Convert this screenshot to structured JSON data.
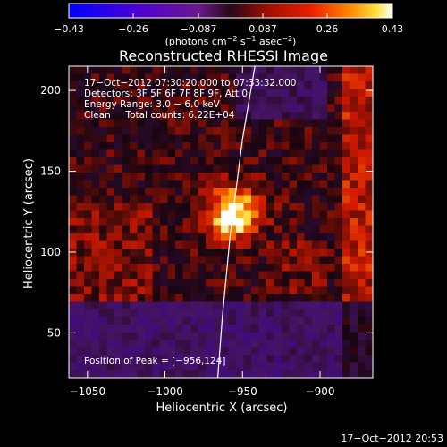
{
  "chart_data": {
    "type": "heatmap",
    "title": "Reconstructed RHESSI Image",
    "xlabel": "Heliocentric X (arcsec)",
    "ylabel": "Heliocentric Y (arcsec)",
    "xlim": [
      -1062,
      -866
    ],
    "ylim": [
      22,
      215
    ],
    "x_ticks": [
      -1050,
      -1000,
      -950,
      -900
    ],
    "x_tick_labels": [
      "−1050",
      "−1000",
      "−950",
      "−900"
    ],
    "y_ticks": [
      50,
      100,
      150,
      200
    ],
    "y_tick_labels": [
      "50",
      "100",
      "150",
      "200"
    ],
    "colorbar": {
      "range": [
        -0.43,
        0.43
      ],
      "tick_labels": [
        "−0.43",
        "−0.26",
        "−0.087",
        "0.087",
        "0.26",
        "0.43"
      ],
      "label_main": "(photons cm",
      "label_sup1": "−2",
      "label_mid": " s",
      "label_sup2": "−1",
      "label_mid2": " asec",
      "label_sup3": "−2",
      "label_end": ")"
    },
    "info_lines": [
      "17−Oct−2012 07:30:20.000 to 07:33:32.000",
      "Detectors: 3F 5F 6F 7F 8F 9F, Att 0",
      "Energy Range: 3.0 − 6.0 keV",
      "Clean     Total counts: 6.22E+04"
    ],
    "peak_label": "Position of Peak = [−956,124]",
    "peak": [
      -956,
      124
    ],
    "limb_curve": [
      [
        -942,
        215
      ],
      [
        -950,
        170
      ],
      [
        -958,
        110
      ],
      [
        -963,
        60
      ],
      [
        -966,
        22
      ]
    ],
    "timestamp": "17−Oct−2012 20:53",
    "colors": {
      "background": "#000000",
      "axes": "#ffffff",
      "colormap": [
        "#0000ff",
        "#3a00b0",
        "#6a1a8a",
        "#4a1550",
        "#801000",
        "#d81800",
        "#ff7000",
        "#ffd000",
        "#ffffff"
      ]
    },
    "grid": false
  }
}
